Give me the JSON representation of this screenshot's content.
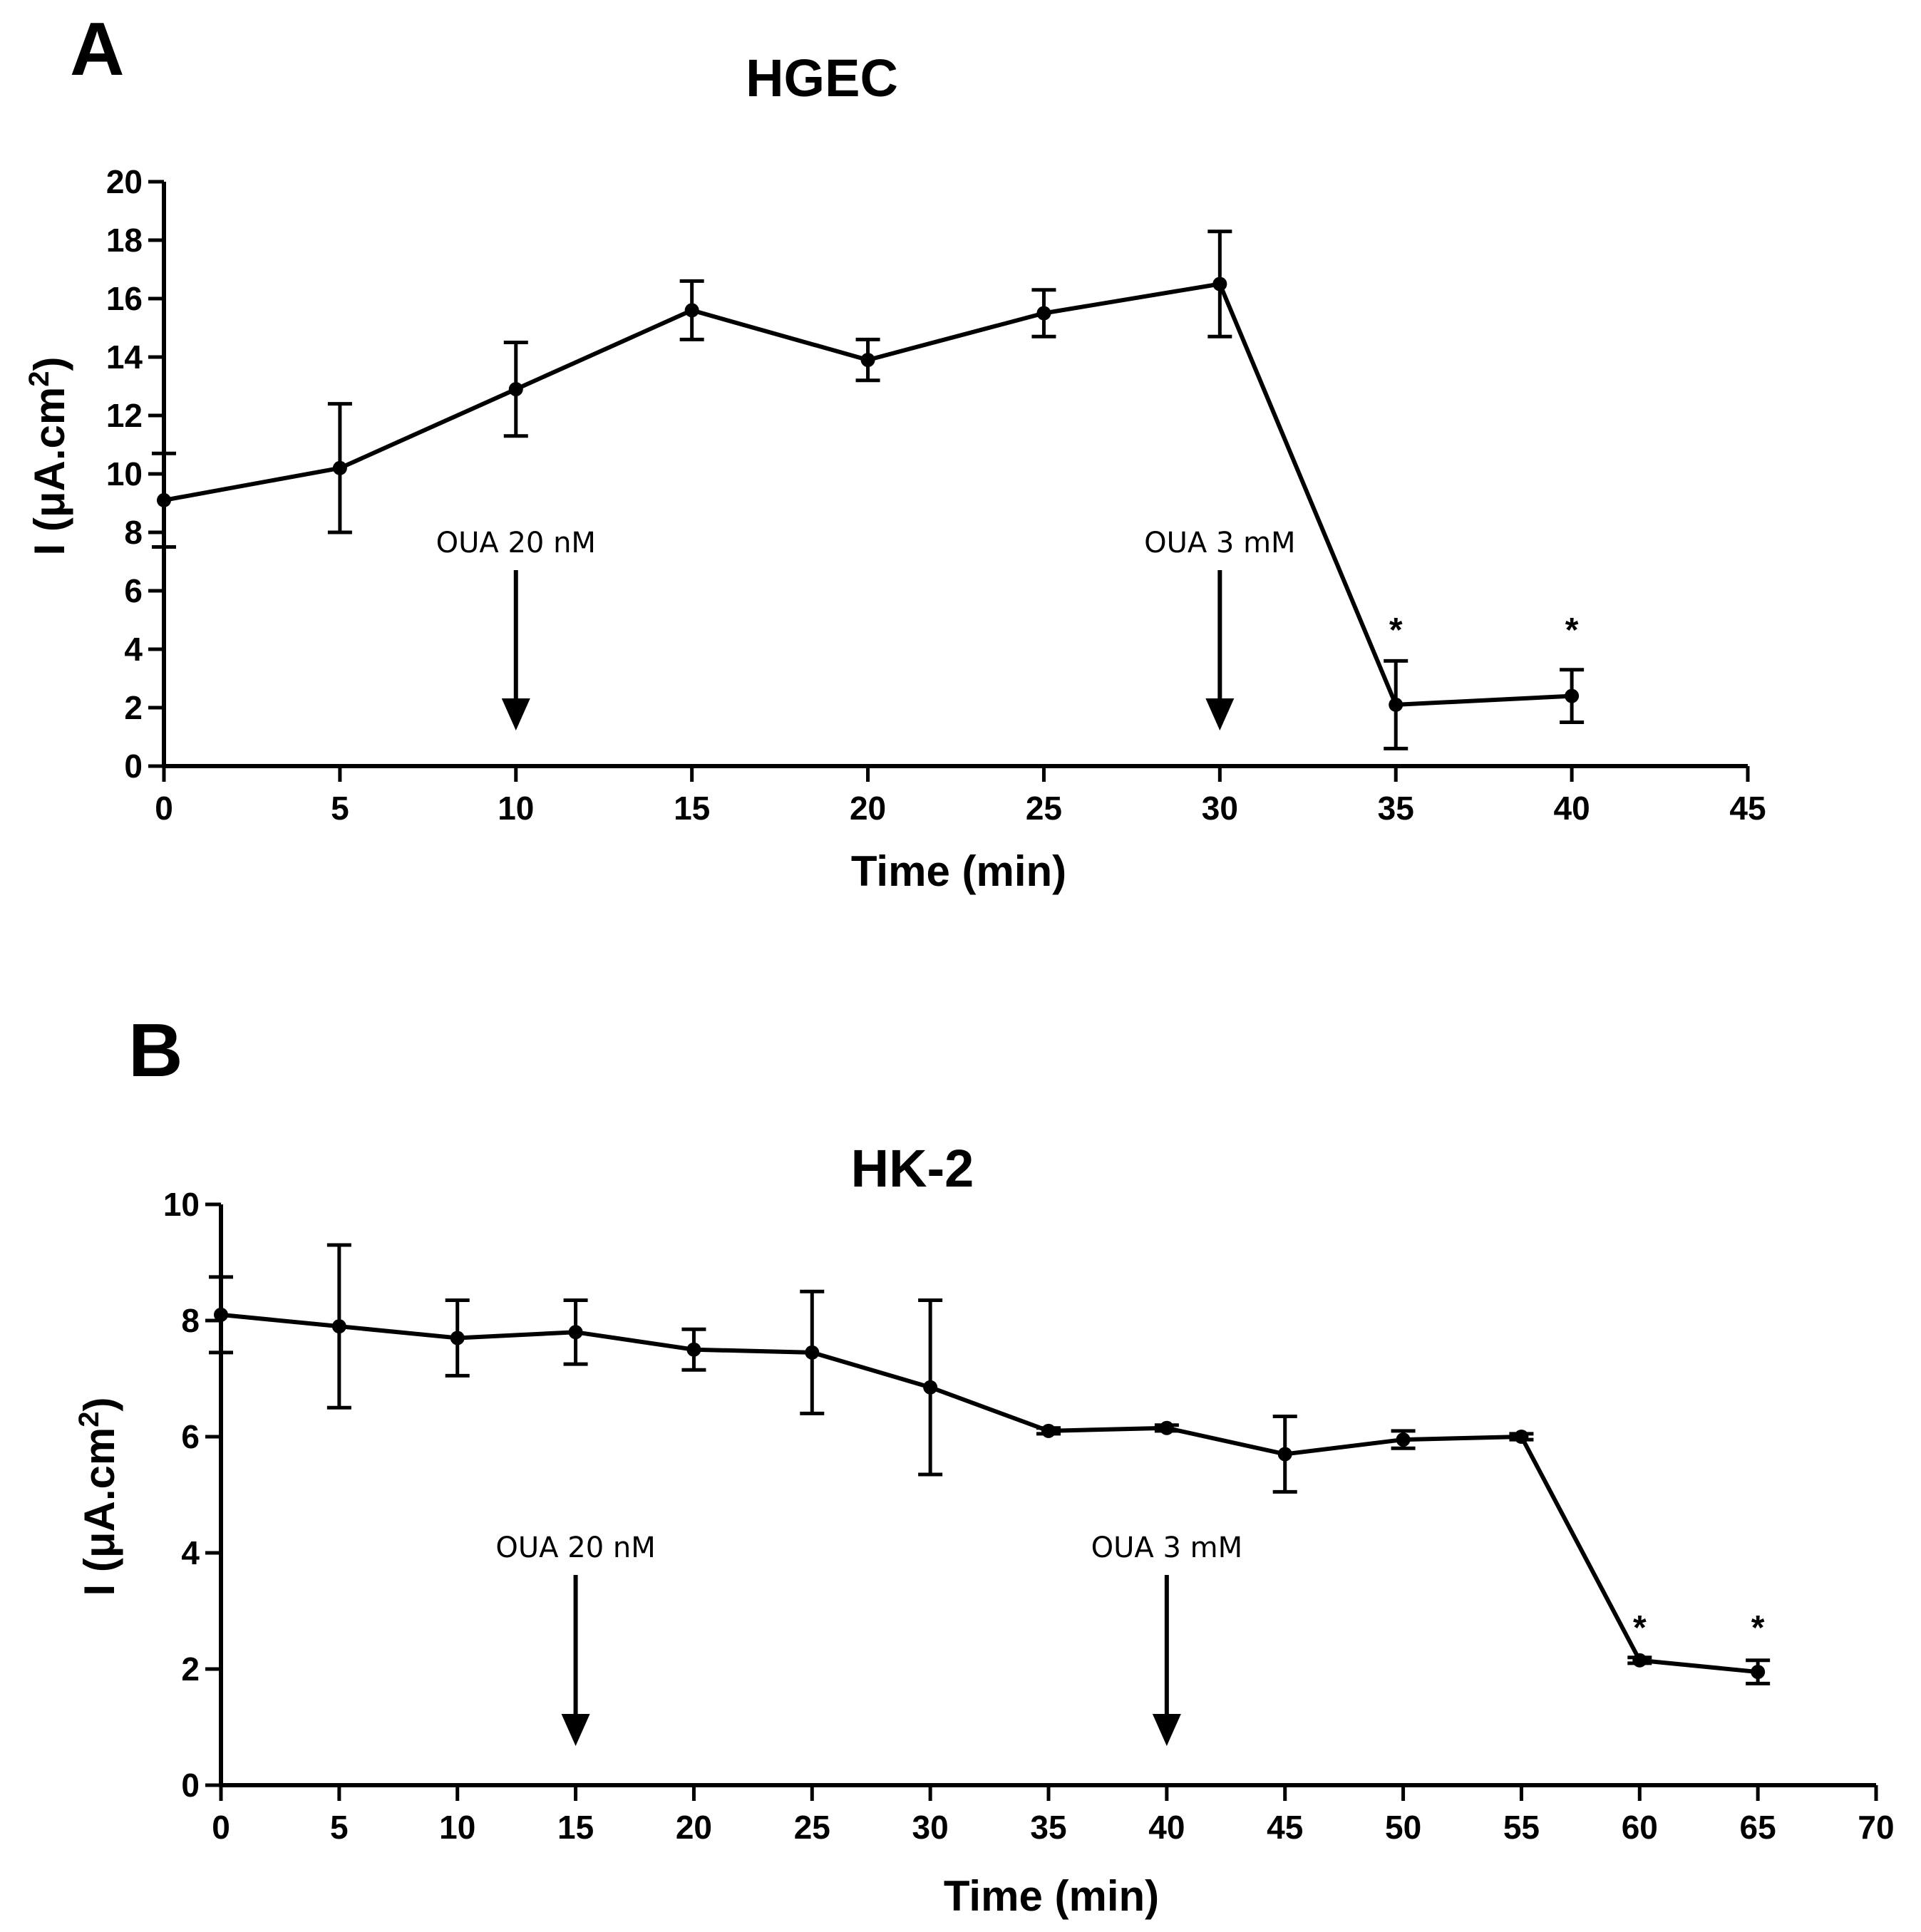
{
  "chart_data": [
    {
      "panel": "A",
      "type": "line",
      "title": "HGEC",
      "xlabel": "Time (min)",
      "ylabel": "I (μA.cm²)",
      "xlim": [
        0,
        45
      ],
      "ylim": [
        0,
        20
      ],
      "xticks": [
        0,
        5,
        10,
        15,
        20,
        25,
        30,
        35,
        40,
        45
      ],
      "yticks": [
        0,
        2,
        4,
        6,
        8,
        10,
        12,
        14,
        16,
        18,
        20
      ],
      "series": [
        {
          "x": [
            0,
            5,
            10,
            15,
            20,
            25,
            30,
            35,
            40
          ],
          "values": [
            9.1,
            10.2,
            12.9,
            15.6,
            13.9,
            15.5,
            16.5,
            2.1,
            2.4
          ],
          "error": [
            1.6,
            2.2,
            1.6,
            1.0,
            0.7,
            0.8,
            1.8,
            1.5,
            0.9
          ]
        }
      ],
      "annotations": [
        {
          "text": "OUA 20 nM",
          "x": 10,
          "arrow": true
        },
        {
          "text": "OUA 3 mM",
          "x": 30,
          "arrow": true
        },
        {
          "text": "*",
          "x": 35
        },
        {
          "text": "*",
          "x": 40
        }
      ]
    },
    {
      "panel": "B",
      "type": "line",
      "title": "HK-2",
      "xlabel": "Time (min)",
      "ylabel": "I (μA.cm²)",
      "xlim": [
        0,
        70
      ],
      "ylim": [
        0,
        10
      ],
      "xticks": [
        0,
        5,
        10,
        15,
        20,
        25,
        30,
        35,
        40,
        45,
        50,
        55,
        60,
        65,
        70
      ],
      "yticks": [
        0,
        2,
        4,
        6,
        8,
        10
      ],
      "series": [
        {
          "x": [
            0,
            5,
            10,
            15,
            20,
            25,
            30,
            35,
            40,
            45,
            50,
            55,
            60,
            65
          ],
          "values": [
            8.1,
            7.9,
            7.7,
            7.8,
            7.5,
            7.45,
            6.85,
            6.1,
            6.15,
            5.7,
            5.95,
            6.0,
            2.15,
            1.95
          ],
          "error": [
            0.65,
            1.4,
            0.65,
            0.55,
            0.35,
            1.05,
            1.5,
            0.05,
            0.05,
            0.65,
            0.15,
            0.05,
            0.05,
            0.2
          ]
        }
      ],
      "annotations": [
        {
          "text": "OUA 20 nM",
          "x": 15,
          "arrow": true
        },
        {
          "text": "OUA 3 mM",
          "x": 40,
          "arrow": true
        },
        {
          "text": "*",
          "x": 60
        },
        {
          "text": "*",
          "x": 65
        }
      ]
    }
  ]
}
